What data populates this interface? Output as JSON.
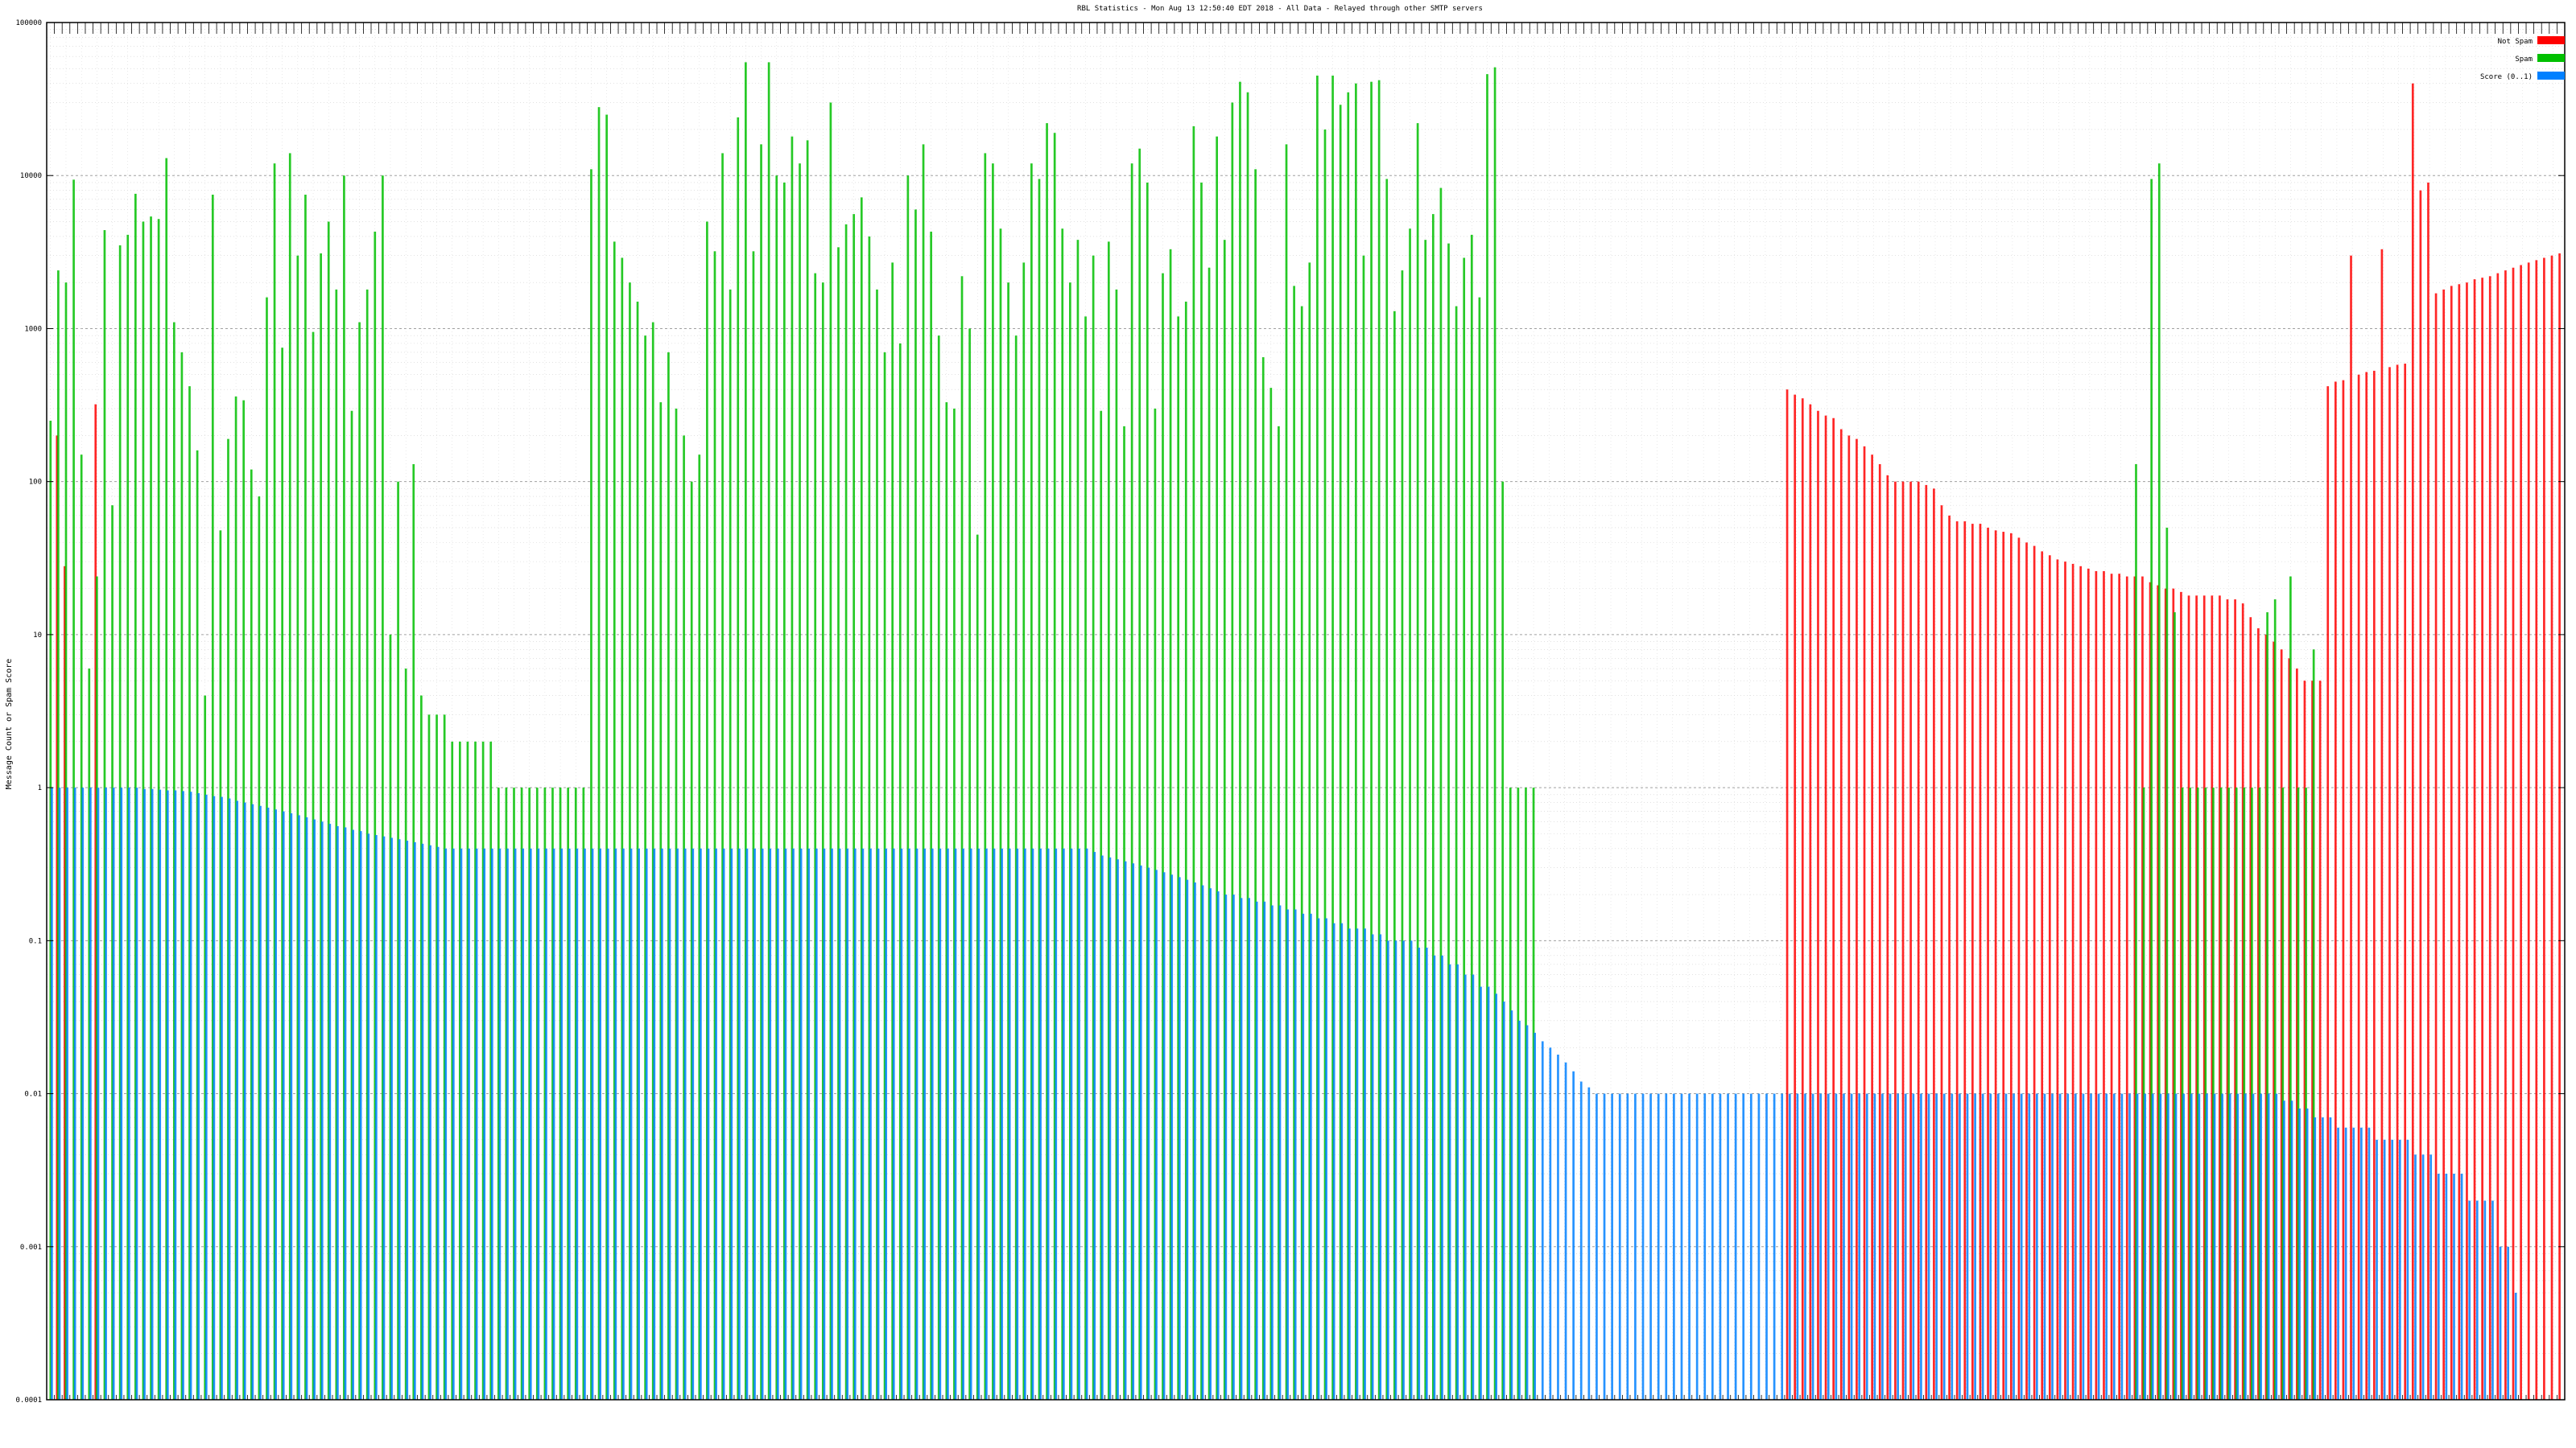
{
  "chart_data": {
    "type": "bar",
    "title": "RBL Statistics - Mon Aug 13 12:50:40 EDT 2018 - All Data - Relayed through other SMTP servers",
    "ylabel": "Message Count or Spam Score",
    "xlabel": "",
    "yscale": "log",
    "ylim": [
      0.0001,
      100000
    ],
    "ytick_labels": [
      "0.0001",
      "0.001",
      "0.01",
      "0.1",
      "1",
      "10",
      "100",
      "1000",
      "10000",
      "100000"
    ],
    "grid": true,
    "legend_position": "top-right",
    "legend": [
      "Not Spam",
      "Spam",
      "Score (0..1)"
    ],
    "colors": {
      "not_spam": "#ff0000",
      "spam": "#00c000",
      "score": "#0080ff",
      "overlap_red_green": "#807f00",
      "overlap_green_blue": "#006080",
      "overlap_red_blue": "#8040a0"
    },
    "x_label_note": "Category tick labels under the x-axis are printed in a tiny overlapping font and are not legible in the screenshot; they are omitted.",
    "series": [
      {
        "name": "Not Spam",
        "values": [
          0,
          200,
          28,
          0,
          0,
          0,
          320,
          0,
          0,
          0,
          0,
          0,
          0,
          0,
          0,
          0,
          0,
          0,
          0,
          0,
          0,
          0,
          0,
          0,
          0,
          0,
          0,
          0,
          0,
          0,
          0,
          0,
          0,
          0,
          0,
          0,
          0,
          0,
          0,
          0,
          0,
          0,
          0,
          0,
          0,
          0,
          0,
          0,
          0,
          0,
          0,
          0,
          0,
          0,
          0,
          0,
          0,
          0,
          0,
          0,
          0,
          0,
          0,
          0,
          0,
          0,
          0,
          0,
          0,
          0,
          0,
          0,
          0,
          0,
          0,
          0,
          0,
          0,
          0,
          0,
          0,
          0,
          0,
          0,
          0,
          0,
          0,
          0,
          0,
          0,
          0,
          0,
          0,
          0,
          0,
          0,
          0,
          0,
          0,
          0,
          0,
          0,
          0,
          0,
          0,
          0,
          0,
          0,
          0,
          0,
          0,
          0,
          0,
          0,
          0,
          0,
          0,
          0,
          0,
          0,
          0,
          0,
          0,
          0,
          0,
          0,
          0,
          0,
          0,
          0,
          0,
          0,
          0,
          0,
          0,
          0,
          0,
          0,
          0,
          0,
          0,
          0,
          0,
          0,
          0,
          0,
          0,
          0,
          0,
          0,
          0,
          0,
          0,
          0,
          0,
          0,
          0,
          0,
          0,
          0,
          0,
          0,
          0,
          0,
          0,
          0,
          0,
          0,
          0,
          0,
          0,
          0,
          0,
          0,
          0,
          0,
          0,
          0,
          0,
          0,
          0,
          0,
          0,
          0,
          0,
          0,
          0,
          0,
          0,
          0,
          0,
          0,
          0,
          0,
          0,
          0,
          0,
          0,
          0,
          0,
          0,
          0,
          0,
          0,
          0,
          0,
          0,
          0,
          0,
          0,
          0,
          0,
          0,
          0,
          0,
          0,
          0,
          0,
          0,
          0,
          0,
          0,
          0,
          0,
          0
        ]
      },
      {
        "name": "Spam",
        "values": [
          250,
          2400,
          2000,
          9400,
          150,
          6,
          24,
          4400,
          70,
          3500,
          4100,
          7600,
          5000,
          5400,
          5200,
          13000,
          1100,
          700,
          420,
          160,
          4,
          7500,
          48,
          190,
          360,
          340,
          120,
          80,
          1600,
          12000,
          750,
          14000,
          3000,
          7500,
          950,
          3100,
          5000,
          1800,
          10000,
          290,
          1100,
          1800,
          4300,
          10000,
          10,
          100,
          6,
          130,
          4,
          3,
          3,
          3,
          2,
          2,
          2,
          2,
          2,
          2,
          1,
          1,
          1,
          1,
          1,
          1,
          1,
          1,
          1,
          1,
          1,
          1,
          11000,
          28000,
          25000,
          3700,
          2900,
          2000,
          1500,
          900,
          1100,
          330,
          700,
          300,
          200,
          100,
          150,
          5000,
          3200,
          14000,
          1800,
          24000,
          55000,
          3200,
          16000,
          55000,
          10000,
          9000,
          18000,
          12000,
          17000,
          2300,
          2000,
          30000,
          3400,
          4800,
          5600,
          7200,
          4000,
          1800,
          700,
          2700,
          800,
          10000,
          6000,
          16000,
          4300,
          900,
          330,
          300,
          2200,
          1000,
          45,
          14000,
          12000,
          4500,
          2000,
          900,
          2700,
          12000,
          9500,
          22000,
          19000,
          4500,
          2000,
          3800,
          1200,
          3000,
          290,
          3700,
          1800,
          230,
          12000,
          15000,
          9000,
          300,
          2300,
          3300,
          1200,
          1500,
          21000,
          9000,
          2500,
          18000,
          3800,
          30000,
          41000,
          35000,
          11000,
          650,
          410,
          230,
          16000,
          1900,
          1400,
          2700,
          45000,
          20000,
          45000,
          29000,
          35000,
          40000,
          3000,
          41000,
          42000,
          9500,
          1300,
          2400,
          4500,
          22000,
          3800,
          5600,
          8300,
          3600,
          1400,
          2900,
          4100,
          1600,
          46000,
          51000,
          100,
          1,
          1,
          1,
          1
        ]
      },
      {
        "name": "Score (0..1)",
        "values": [
          1.0,
          1.0,
          1.0,
          1.0,
          1.0,
          1.0,
          1.0,
          1.0,
          1.0,
          1.0,
          1.0,
          1.0,
          0.98,
          0.98,
          0.97,
          0.96,
          0.96,
          0.95,
          0.94,
          0.92,
          0.9,
          0.88,
          0.87,
          0.85,
          0.82,
          0.8,
          0.78,
          0.76,
          0.74,
          0.72,
          0.7,
          0.68,
          0.66,
          0.64,
          0.62,
          0.6,
          0.58,
          0.56,
          0.55,
          0.53,
          0.52,
          0.5,
          0.49,
          0.48,
          0.47,
          0.46,
          0.45,
          0.44,
          0.43,
          0.42,
          0.41,
          0.4,
          0.4,
          0.4,
          0.4,
          0.4,
          0.4,
          0.4,
          0.4,
          0.4,
          0.4,
          0.4,
          0.4,
          0.4,
          0.4,
          0.4,
          0.4,
          0.4,
          0.4,
          0.4,
          0.4,
          0.4,
          0.4,
          0.4,
          0.4,
          0.4,
          0.4,
          0.4,
          0.4,
          0.4,
          0.4,
          0.4,
          0.4,
          0.4,
          0.4,
          0.4,
          0.4,
          0.4,
          0.4,
          0.4,
          0.4,
          0.4,
          0.4,
          0.4,
          0.4,
          0.4,
          0.4,
          0.4,
          0.4,
          0.4,
          0.4,
          0.4,
          0.4,
          0.4,
          0.4,
          0.4,
          0.4,
          0.4,
          0.4,
          0.4,
          0.4,
          0.4,
          0.4,
          0.4,
          0.4,
          0.4,
          0.4,
          0.4,
          0.4,
          0.4,
          0.4,
          0.4,
          0.4,
          0.4,
          0.4,
          0.4,
          0.4,
          0.4,
          0.4,
          0.4,
          0.4,
          0.4,
          0.4,
          0.4,
          0.4,
          0.38,
          0.36,
          0.35,
          0.34,
          0.33,
          0.32,
          0.31,
          0.3,
          0.29,
          0.28,
          0.27,
          0.26,
          0.25,
          0.24,
          0.23,
          0.22,
          0.21,
          0.2,
          0.2,
          0.19,
          0.19,
          0.18,
          0.18,
          0.17,
          0.17,
          0.16,
          0.16,
          0.15,
          0.15,
          0.14,
          0.14,
          0.13,
          0.13,
          0.12,
          0.12,
          0.12,
          0.11,
          0.11,
          0.1,
          0.1,
          0.1,
          0.1,
          0.09,
          0.09,
          0.08,
          0.08,
          0.07,
          0.07,
          0.06,
          0.06,
          0.05,
          0.05,
          0.045,
          0.04,
          0.035,
          0.03,
          0.028,
          0.025,
          0.022,
          0.02,
          0.018,
          0.016,
          0.014,
          0.012,
          0.011,
          0.01,
          0.01,
          0.01,
          0.01,
          0.01,
          0.01,
          0.01,
          0.01,
          0.01,
          0.01,
          0.01,
          0.01,
          0.01,
          0.01,
          0.01,
          0.01,
          0.01,
          0.01,
          0.01
        ]
      }
    ],
    "tail_series": {
      "description": "right-hand portion of the chart after the Spam series ends (scores at 0.01 and below)",
      "not_spam": [
        400,
        370,
        350,
        320,
        290,
        270,
        260,
        220,
        200,
        190,
        170,
        150,
        130,
        110,
        100,
        100,
        100,
        100,
        95,
        90,
        70,
        60,
        55,
        55,
        53,
        53,
        50,
        48,
        47,
        46,
        43,
        40,
        38,
        35,
        33,
        31,
        30,
        29,
        28,
        27,
        26,
        26,
        25,
        25,
        24,
        24,
        24,
        22,
        21,
        20,
        20,
        19,
        18,
        18,
        18,
        18,
        18,
        17,
        17,
        16,
        13,
        11,
        10,
        9,
        8,
        7,
        6,
        5,
        5,
        5,
        420,
        450,
        460,
        3000,
        500,
        520,
        530,
        3300,
        560,
        580,
        590,
        40000,
        8000,
        9000,
        1700,
        1800,
        1900,
        1950,
        2000,
        2100,
        2150,
        2200,
        2300,
        2400,
        2500,
        2600,
        2700,
        2800,
        2900,
        3000,
        3100
      ],
      "spam": [
        0,
        0,
        0,
        0,
        0,
        0,
        0,
        0,
        0,
        0,
        0,
        0,
        0,
        0,
        0,
        0,
        0,
        0,
        0,
        0,
        0,
        0,
        0,
        0,
        0,
        0,
        0,
        0,
        0,
        0,
        0,
        0,
        0,
        0,
        0,
        0,
        0,
        0,
        0,
        0,
        0,
        0,
        0,
        0,
        0,
        0,
        0,
        0,
        0,
        0,
        0,
        0,
        0,
        0,
        0,
        0,
        0,
        0,
        0,
        0,
        0,
        0,
        0,
        0,
        0,
        0,
        0,
        0,
        0,
        0,
        0,
        0,
        0,
        0,
        0,
        0,
        0,
        130,
        1,
        9500,
        12000,
        50,
        14,
        1,
        1,
        1,
        1,
        1,
        1,
        1,
        1,
        1,
        1,
        1,
        14,
        17,
        1,
        24,
        1,
        1,
        8
      ],
      "score": [
        0.01,
        0.01,
        0.01,
        0.01,
        0.01,
        0.01,
        0.01,
        0.01,
        0.01,
        0.01,
        0.01,
        0.01,
        0.01,
        0.01,
        0.01,
        0.01,
        0.01,
        0.01,
        0.01,
        0.01,
        0.01,
        0.01,
        0.01,
        0.01,
        0.01,
        0.01,
        0.01,
        0.01,
        0.01,
        0.01,
        0.01,
        0.01,
        0.01,
        0.01,
        0.01,
        0.01,
        0.01,
        0.01,
        0.01,
        0.01,
        0.01,
        0.01,
        0.01,
        0.01,
        0.01,
        0.01,
        0.01,
        0.01,
        0.01,
        0.01,
        0.01,
        0.01,
        0.01,
        0.01,
        0.01,
        0.01,
        0.01,
        0.01,
        0.01,
        0.01,
        0.01,
        0.01,
        0.01,
        0.01,
        0.01,
        0.01,
        0.01,
        0.01,
        0.01,
        0.01,
        0.009,
        0.009,
        0.008,
        0.008,
        0.007,
        0.007,
        0.007,
        0.006,
        0.006,
        0.006,
        0.006,
        0.006,
        0.005,
        0.005,
        0.005,
        0.005,
        0.005,
        0.004,
        0.004,
        0.004,
        0.003,
        0.003,
        0.003,
        0.003,
        0.002,
        0.002,
        0.002,
        0.002,
        0.001,
        0.001,
        0.0005
      ]
    }
  }
}
